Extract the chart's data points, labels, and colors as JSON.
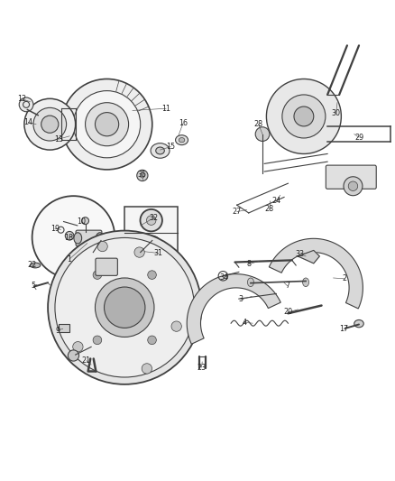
{
  "background_color": "#ffffff",
  "line_color": "#404040",
  "text_color": "#222222",
  "fig_width": 4.38,
  "fig_height": 5.33,
  "dpi": 100
}
